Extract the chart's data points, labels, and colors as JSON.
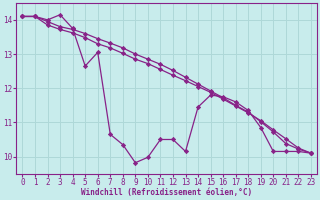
{
  "background_color": "#c8ecec",
  "grid_color": "#aed8d8",
  "line_color": "#882288",
  "xlabel": "Windchill (Refroidissement éolien,°C)",
  "xlim": [
    -0.5,
    23.5
  ],
  "ylim": [
    9.5,
    14.5
  ],
  "yticks": [
    10,
    11,
    12,
    13,
    14
  ],
  "xticks": [
    0,
    1,
    2,
    3,
    4,
    5,
    6,
    7,
    8,
    9,
    10,
    11,
    12,
    13,
    14,
    15,
    16,
    17,
    18,
    19,
    20,
    21,
    22,
    23
  ],
  "series1_x": [
    0,
    1,
    2,
    3,
    4,
    5,
    6,
    7,
    8,
    9,
    10,
    11,
    12,
    13,
    14,
    15,
    16,
    17,
    18,
    19,
    20,
    21,
    22,
    23
  ],
  "series1_y": [
    14.1,
    14.1,
    14.0,
    14.15,
    13.75,
    12.65,
    13.05,
    10.65,
    10.35,
    9.82,
    9.98,
    10.5,
    10.5,
    10.15,
    11.45,
    11.8,
    11.75,
    11.6,
    11.35,
    10.85,
    10.15,
    10.15,
    10.15,
    10.1
  ],
  "series2_x": [
    0,
    1,
    2,
    3,
    4,
    5,
    6,
    7,
    8,
    9,
    10,
    11,
    12,
    13,
    14,
    15,
    16,
    17,
    18,
    19,
    20,
    21,
    22,
    23
  ],
  "series2_y": [
    14.1,
    14.1,
    13.85,
    13.72,
    13.62,
    13.48,
    13.3,
    13.18,
    13.02,
    12.85,
    12.72,
    12.55,
    12.38,
    12.22,
    12.05,
    11.88,
    11.68,
    11.48,
    11.28,
    11.05,
    10.78,
    10.52,
    10.25,
    10.1
  ],
  "series3_x": [
    0,
    1,
    2,
    3,
    4,
    5,
    6,
    7,
    8,
    9,
    10,
    11,
    12,
    13,
    14,
    15,
    16,
    17,
    18,
    19,
    20,
    21,
    22,
    23
  ],
  "series3_y": [
    14.1,
    14.1,
    13.95,
    13.8,
    13.72,
    13.6,
    13.45,
    13.32,
    13.18,
    13.0,
    12.85,
    12.7,
    12.52,
    12.32,
    12.12,
    11.92,
    11.72,
    11.5,
    11.3,
    11.02,
    10.72,
    10.38,
    10.22,
    10.1
  ]
}
